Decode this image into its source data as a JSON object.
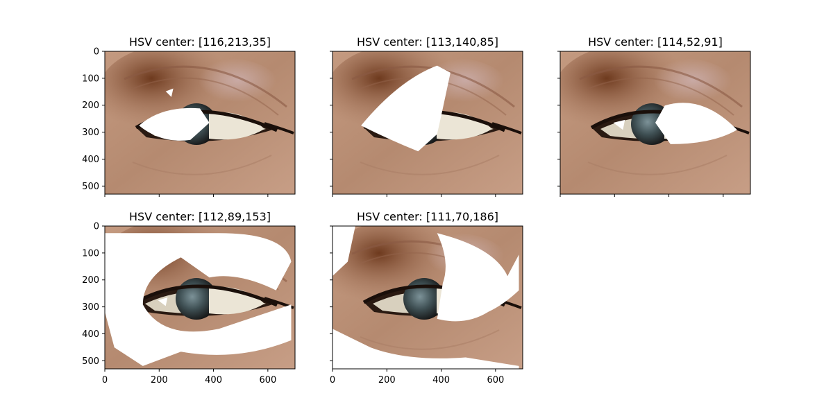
{
  "chart_data": [
    {
      "type": "image-mask",
      "title": "HSV center: [116,213,35]",
      "hsv_center": [
        116,
        213,
        35
      ],
      "xlim": [
        0,
        700
      ],
      "ylim": [
        530,
        0
      ],
      "xticks": [],
      "yticks": [
        "0",
        "100",
        "200",
        "300",
        "400",
        "500"
      ],
      "masked_color": "#ffffff"
    },
    {
      "type": "image-mask",
      "title": "HSV center: [113,140,85]",
      "hsv_center": [
        113,
        140,
        85
      ],
      "xlim": [
        0,
        700
      ],
      "ylim": [
        530,
        0
      ],
      "xticks": [],
      "yticks": [],
      "masked_color": "#ffffff"
    },
    {
      "type": "image-mask",
      "title": "HSV center: [114,52,91]",
      "hsv_center": [
        114,
        52,
        91
      ],
      "xlim": [
        0,
        700
      ],
      "ylim": [
        530,
        0
      ],
      "xticks": [],
      "yticks": [],
      "masked_color": "#ffffff"
    },
    {
      "type": "image-mask",
      "title": "HSV center: [112,89,153]",
      "hsv_center": [
        112,
        89,
        153
      ],
      "xlim": [
        0,
        700
      ],
      "ylim": [
        530,
        0
      ],
      "xticks": [
        "0",
        "200",
        "400",
        "600"
      ],
      "yticks": [
        "0",
        "100",
        "200",
        "300",
        "400",
        "500"
      ],
      "masked_color": "#ffffff"
    },
    {
      "type": "image-mask",
      "title": "HSV center: [111,70,186]",
      "hsv_center": [
        111,
        70,
        186
      ],
      "xlim": [
        0,
        700
      ],
      "ylim": [
        530,
        0
      ],
      "xticks": [
        "0",
        "200",
        "400",
        "600"
      ],
      "yticks": [],
      "masked_color": "#ffffff"
    }
  ],
  "palette": {
    "skin": "#c29478",
    "skin_dark": "#9e7058",
    "eyeshadow": "#7a3f22",
    "iris": "#3c4a4e",
    "sclera": "#e8e2d2",
    "lash": "#2a1a12",
    "mask": "#ffffff"
  }
}
